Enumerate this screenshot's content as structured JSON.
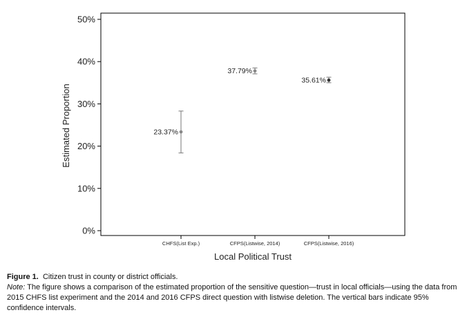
{
  "chart_data": {
    "type": "scatter",
    "categories": [
      "CHFS(List Exp.)",
      "CFPS(Listwise, 2014)",
      "CFPS(Listwise, 2016)"
    ],
    "values": [
      23.37,
      37.79,
      35.61
    ],
    "ci_lower": [
      18.4,
      37.1,
      35.0
    ],
    "ci_upper": [
      28.3,
      38.5,
      36.3
    ],
    "labels": [
      "23.37%",
      "37.79%",
      "35.61%"
    ],
    "point_colors": [
      "#888888",
      "#888888",
      "#333333"
    ],
    "xlabel": "Local Political Trust",
    "ylabel": "Estimated Proportion",
    "ylim": [
      0,
      50
    ],
    "yticks": [
      0,
      10,
      20,
      30,
      40,
      50
    ],
    "ytick_labels": [
      "0%",
      "10%",
      "20%",
      "30%",
      "40%",
      "50%"
    ],
    "grid": false,
    "frame": "box"
  },
  "caption": {
    "figure_label": "Figure 1.",
    "figure_title": "Citizen trust in county or district officials.",
    "note_label": "Note:",
    "note_text": "The figure shows a comparison of the estimated proportion of the sensitive question—trust in local officials—using the data from 2015 CHFS list experiment and the 2014 and 2016 CFPS direct question with listwise deletion. The vertical bars indicate 95% confidence intervals."
  }
}
